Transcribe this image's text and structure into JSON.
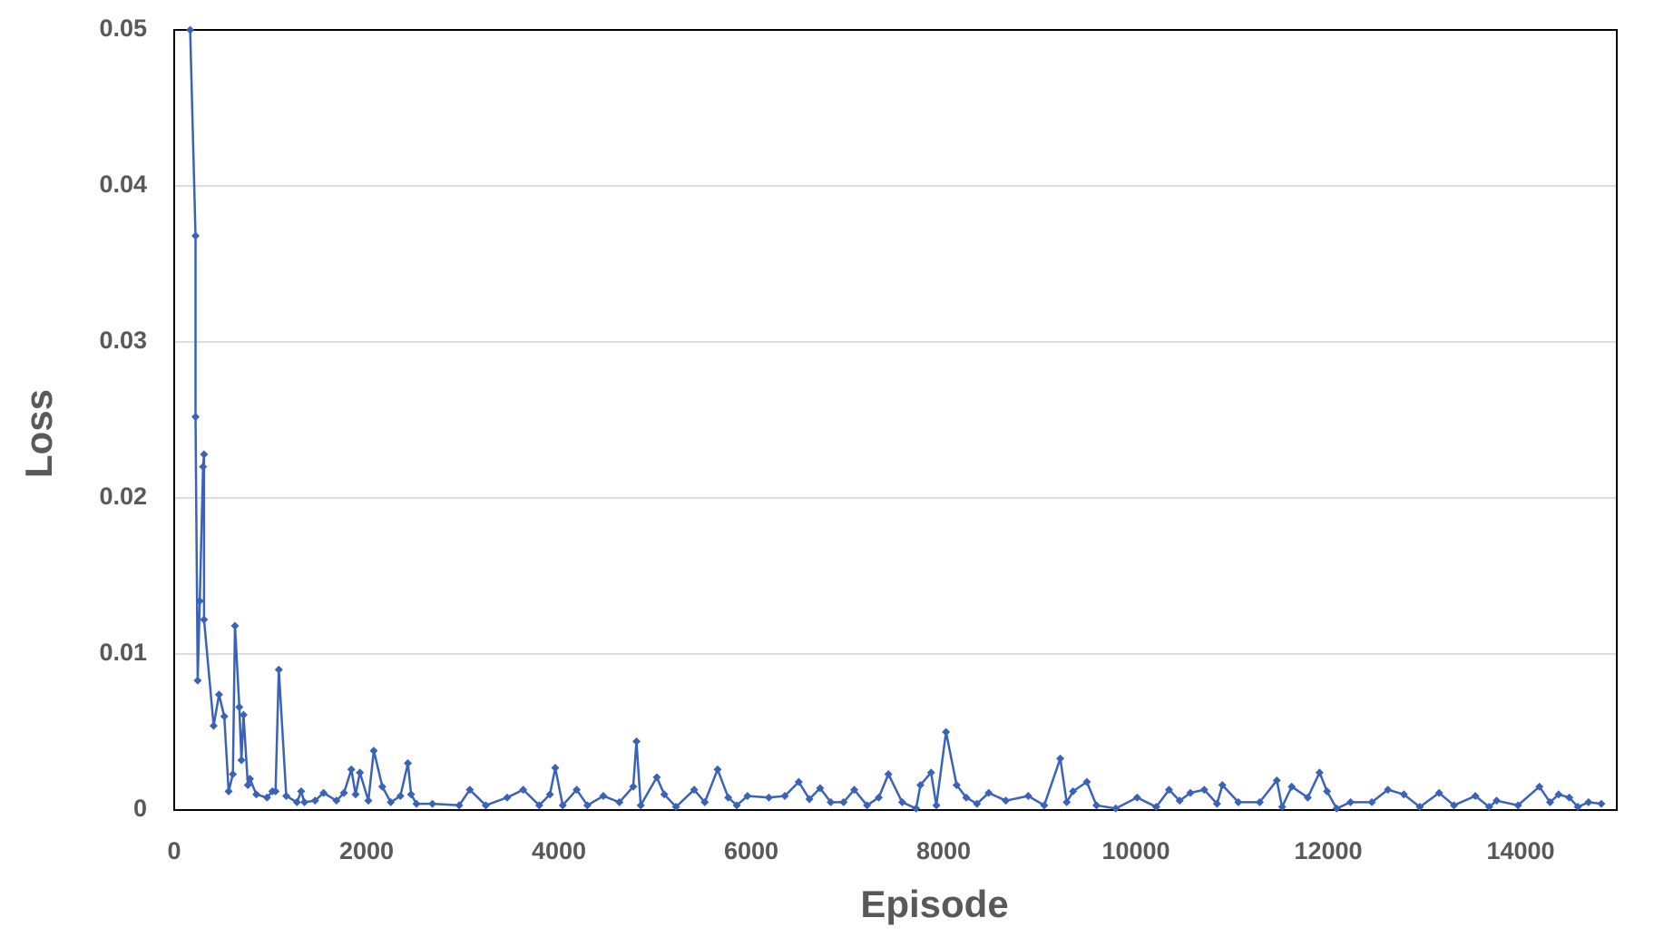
{
  "chart_data": {
    "type": "line",
    "xlabel": "Episode",
    "ylabel": "Loss",
    "xlim": [
      0,
      15000
    ],
    "ylim": [
      0,
      0.05
    ],
    "xticks": [
      0,
      2000,
      4000,
      6000,
      8000,
      10000,
      12000,
      14000
    ],
    "yticks": [
      0,
      0.01,
      0.02,
      0.03,
      0.04,
      0.05
    ],
    "grid": true,
    "series": [
      {
        "color": "#3a62b8",
        "x": [
          166,
          222,
          222,
          244,
          266,
          300,
          310,
          310,
          410,
          466,
          521,
          566,
          610,
          632,
          677,
          699,
          721,
          766,
          788,
          854,
          965,
          1021,
          1054,
          1088,
          1165,
          1276,
          1320,
          1354,
          1465,
          1553,
          1687,
          1765,
          1842,
          1886,
          1931,
          2019,
          2075,
          2164,
          2252,
          2352,
          2430,
          2463,
          2519,
          2685,
          2963,
          3074,
          3240,
          3462,
          3629,
          3796,
          3907,
          3962,
          4040,
          4185,
          4296,
          4462,
          4629,
          4773,
          4807,
          4851,
          5018,
          5096,
          5218,
          5406,
          5517,
          5650,
          5761,
          5850,
          5961,
          6183,
          6349,
          6494,
          6605,
          6716,
          6827,
          6960,
          7071,
          7204,
          7326,
          7426,
          7570,
          7714,
          7759,
          7870,
          7925,
          8025,
          8136,
          8236,
          8347,
          8469,
          8647,
          8880,
          9046,
          9213,
          9280,
          9346,
          9490,
          9590,
          9790,
          10012,
          10211,
          10344,
          10455,
          10566,
          10710,
          10843,
          10899,
          11065,
          11287,
          11465,
          11520,
          11620,
          11787,
          11909,
          11987,
          12087,
          12231,
          12453,
          12620,
          12786,
          12952,
          13152,
          13307,
          13529,
          13673,
          13751,
          13973,
          14195,
          14306,
          14395,
          14506,
          14595,
          14706,
          14839
        ],
        "values": [
          0.05,
          0.0368,
          0.0252,
          0.0083,
          0.0134,
          0.022,
          0.0228,
          0.0122,
          0.0054,
          0.0074,
          0.006,
          0.0012,
          0.0023,
          0.0118,
          0.0066,
          0.0032,
          0.0061,
          0.0016,
          0.002,
          0.001,
          0.0008,
          0.0012,
          0.0012,
          0.009,
          0.0009,
          0.0005,
          0.0012,
          0.0005,
          0.0006,
          0.0011,
          0.0006,
          0.0011,
          0.0026,
          0.001,
          0.0024,
          0.0006,
          0.0038,
          0.0015,
          0.0005,
          0.0009,
          0.003,
          0.001,
          0.0004,
          0.0004,
          0.0003,
          0.0013,
          0.0003,
          0.0008,
          0.0013,
          0.0003,
          0.001,
          0.0027,
          0.0003,
          0.0013,
          0.0003,
          0.0009,
          0.0005,
          0.0015,
          0.0044,
          0.0003,
          0.0021,
          0.001,
          0.0002,
          0.0013,
          0.0005,
          0.0026,
          0.0008,
          0.0003,
          0.0009,
          0.0008,
          0.0009,
          0.0018,
          0.0007,
          0.0014,
          0.0005,
          0.0005,
          0.0013,
          0.0003,
          0.0008,
          0.0023,
          0.0005,
          0.0001,
          0.0016,
          0.0024,
          0.0003,
          0.005,
          0.0016,
          0.0008,
          0.0004,
          0.0011,
          0.0006,
          0.0009,
          0.0003,
          0.0033,
          0.0005,
          0.0012,
          0.0018,
          0.0003,
          0.0001,
          0.0008,
          0.0002,
          0.0013,
          0.0006,
          0.0011,
          0.0013,
          0.0004,
          0.0016,
          0.0005,
          0.0005,
          0.0019,
          0.0002,
          0.0015,
          0.0008,
          0.0024,
          0.0012,
          0.0001,
          0.0005,
          0.0005,
          0.0013,
          0.001,
          0.0002,
          0.0011,
          0.0003,
          0.0009,
          0.0002,
          0.0006,
          0.0003,
          0.0015,
          0.0005,
          0.001,
          0.0008,
          0.0002,
          0.0005,
          0.0004
        ]
      }
    ]
  }
}
